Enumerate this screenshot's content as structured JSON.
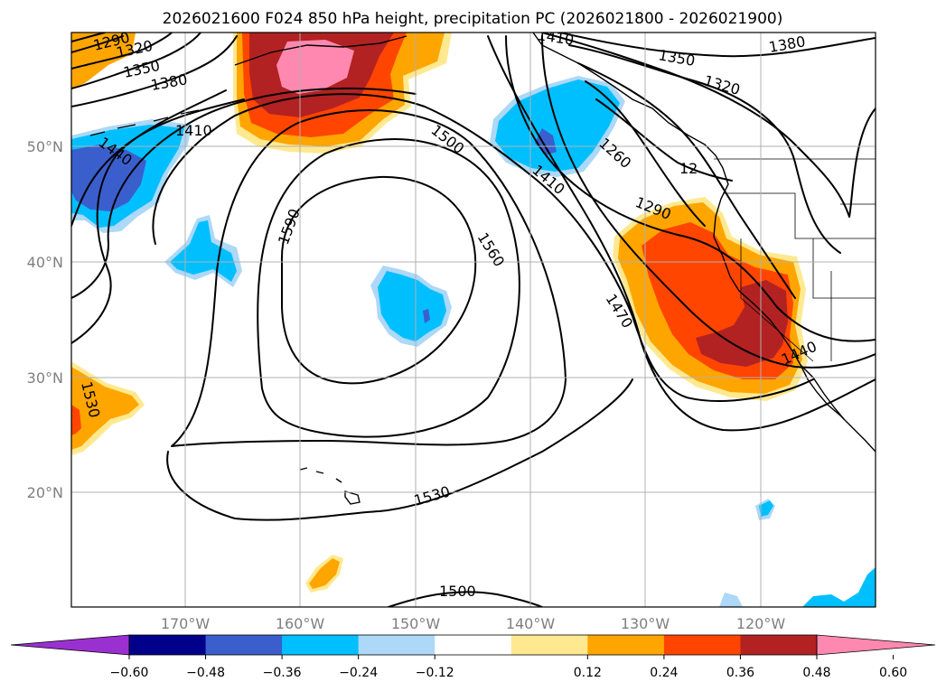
{
  "title": "2026021600 F024 850 hPa height, precipitation PC (2026021800 - 2026021900)",
  "map": {
    "lon_labels": [
      "170°W",
      "160°W",
      "150°W",
      "140°W",
      "130°W",
      "120°W"
    ],
    "lat_labels": [
      "50°N",
      "40°N",
      "30°N",
      "20°N"
    ],
    "height_contour_labels": [
      {
        "text": "1290",
        "id": "nw-1290"
      },
      {
        "text": "1320",
        "id": "nw-1320"
      },
      {
        "text": "1350",
        "id": "nw-1350"
      },
      {
        "text": "1380",
        "id": "nw-1380"
      },
      {
        "text": "1410",
        "id": "nw-1410"
      },
      {
        "text": "1440",
        "id": "w-1440"
      },
      {
        "text": "1590",
        "id": "high-1590"
      },
      {
        "text": "1500",
        "id": "c-1500"
      },
      {
        "text": "1560",
        "id": "c-1560"
      },
      {
        "text": "1410",
        "id": "ne-1410"
      },
      {
        "text": "1350",
        "id": "ne-1350"
      },
      {
        "text": "1380",
        "id": "ne-1380"
      },
      {
        "text": "1320",
        "id": "ne-1320"
      },
      {
        "text": "1260",
        "id": "ne-1260"
      },
      {
        "text": "12",
        "id": "ne-12"
      },
      {
        "text": "1290",
        "id": "e-1290"
      },
      {
        "text": "1470",
        "id": "e-1470"
      },
      {
        "text": "1440",
        "id": "se-1440"
      },
      {
        "text": "1530",
        "id": "sw-1530"
      },
      {
        "text": "1530",
        "id": "s-1530"
      },
      {
        "text": "1500",
        "id": "s-1500"
      },
      {
        "text": "1410",
        "id": "top-1410"
      }
    ]
  },
  "colorbar": {
    "ticks": [
      "−0.60",
      "−0.48",
      "−0.36",
      "−0.24",
      "−0.12",
      "0.12",
      "0.24",
      "0.36",
      "0.48",
      "0.60"
    ],
    "colors": [
      "#9b30d0",
      "#00008b",
      "#3a5fcd",
      "#00bfff",
      "#add8f7",
      "#ffffff",
      "#ffe990",
      "#ffa500",
      "#ff4500",
      "#b22222",
      "#ff88b0"
    ]
  }
}
